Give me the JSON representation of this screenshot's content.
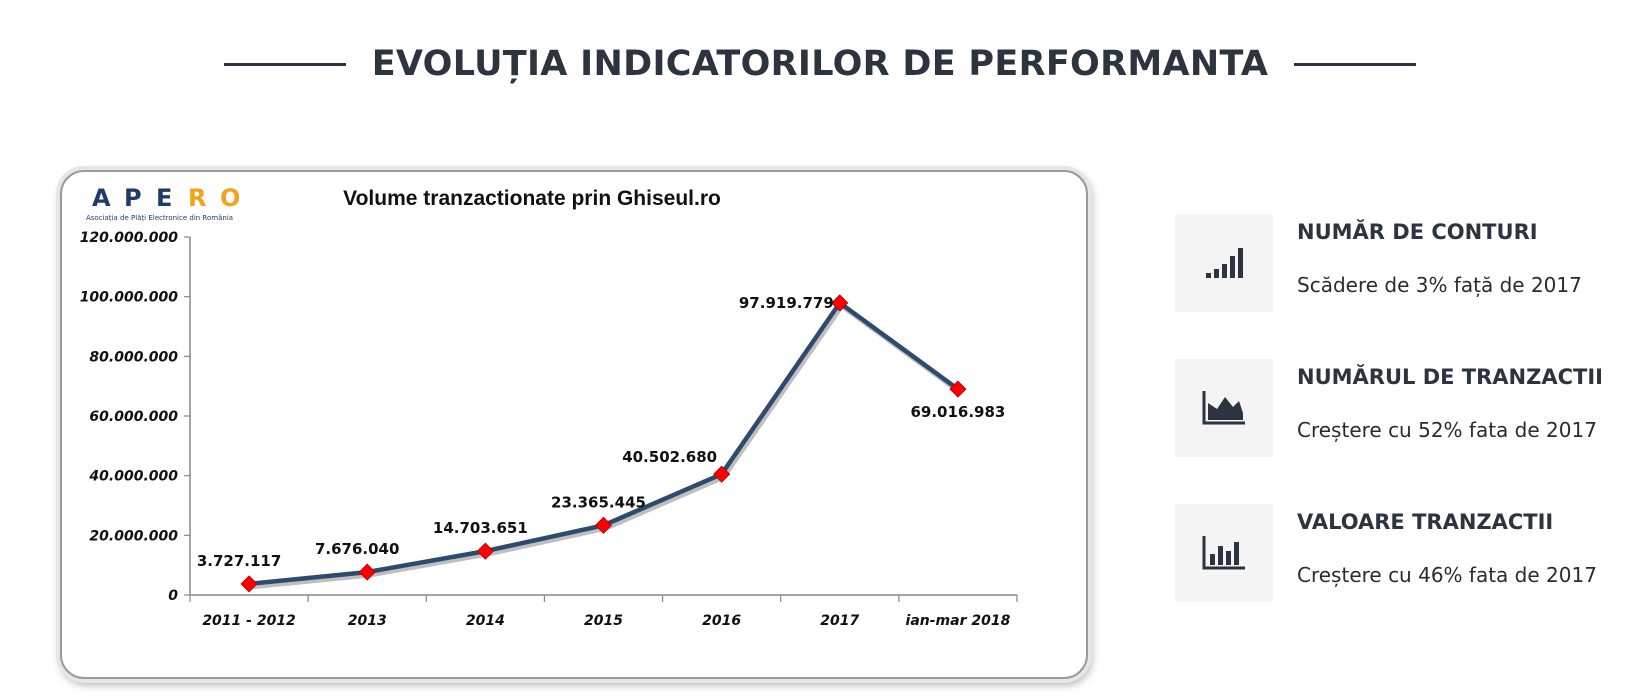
{
  "header": {
    "title": "EVOLUȚIA INDICATORILOR DE PERFORMANTA"
  },
  "logo": {
    "text": "APERO",
    "subtitle": "Asociația de Plăți Electronice din România",
    "colors": [
      "#1f3b6b",
      "#1f3b6b",
      "#1f3b6b",
      "#f2a31a",
      "#f2a31a"
    ]
  },
  "chart_data": {
    "type": "line",
    "title": "Volume tranzactionate prin Ghiseul.ro",
    "categories": [
      "2011 - 2012",
      "2013",
      "2014",
      "2015",
      "2016",
      "2017",
      "ian-mar 2018"
    ],
    "values": [
      3727117,
      7676040,
      14703651,
      23365445,
      40502680,
      97919779,
      69016983
    ],
    "data_labels": [
      "3.727.117",
      "7.676.040",
      "14.703.651",
      "23.365.445",
      "40.502.680",
      "97.919.779",
      "69.016.983"
    ],
    "ylim": [
      0,
      120000000
    ],
    "yticks": [
      0,
      20000000,
      40000000,
      60000000,
      80000000,
      100000000,
      120000000
    ],
    "ytick_labels": [
      "0",
      "20.000.000",
      "40.000.000",
      "60.000.000",
      "80.000.000",
      "100.000.000",
      "120.000.000"
    ],
    "xlabel": "",
    "ylabel": "",
    "grid": false,
    "line_color": "#2e4a6e",
    "marker_color": "#ff0000"
  },
  "stats": [
    {
      "title": "NUMĂR DE CONTURI",
      "desc": "Scădere de 3% față de 2017",
      "icon": "signal-bars-icon"
    },
    {
      "title": "NUMĂRUL DE TRANZACTII",
      "desc": "Creștere cu 52% fata de 2017",
      "icon": "area-chart-icon"
    },
    {
      "title": "VALOARE TRANZACTII",
      "desc": "Creștere cu 46% fata de 2017",
      "icon": "bar-chart-icon"
    }
  ]
}
